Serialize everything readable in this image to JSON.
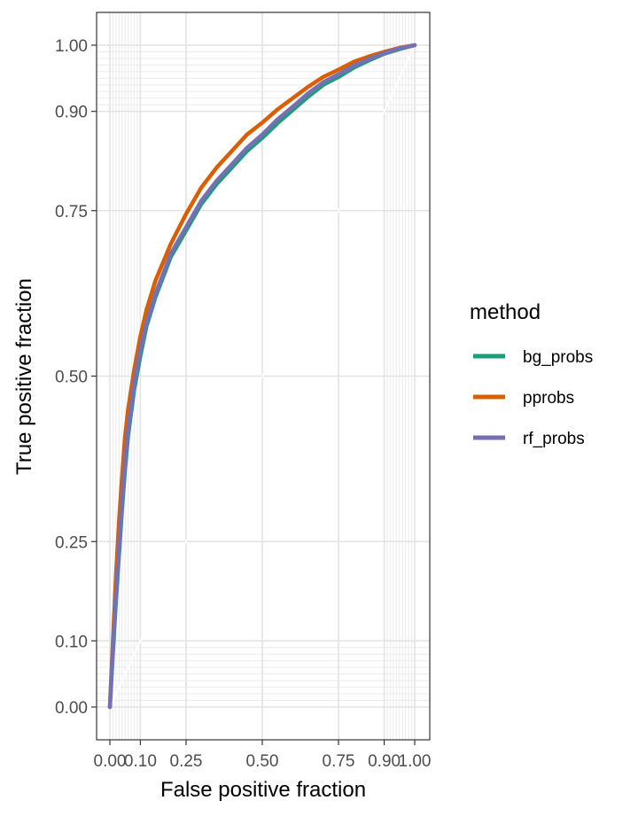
{
  "chart_data": {
    "type": "line",
    "xlabel": "False positive fraction",
    "ylabel": "True positive fraction",
    "xlim": [
      0,
      1
    ],
    "ylim": [
      0,
      1
    ],
    "x_major_ticks": [
      0,
      0.1,
      0.25,
      0.5,
      0.75,
      0.9,
      1
    ],
    "x_tick_labels": [
      "0.00",
      "0.10",
      "0.25",
      "0.50",
      "0.75",
      "0.90",
      "1.00"
    ],
    "y_major_ticks": [
      0,
      0.1,
      0.25,
      0.5,
      0.75,
      0.9,
      1
    ],
    "y_tick_labels": [
      "0.00",
      "0.10",
      "0.25",
      "0.50",
      "0.75",
      "0.90",
      "1.00"
    ],
    "x_minor_ticks": [
      0.01,
      0.02,
      0.03,
      0.04,
      0.05,
      0.06,
      0.07,
      0.08,
      0.09,
      0.91,
      0.92,
      0.93,
      0.94,
      0.95,
      0.96,
      0.97,
      0.98,
      0.99
    ],
    "y_minor_ticks": [
      0.01,
      0.02,
      0.03,
      0.04,
      0.05,
      0.06,
      0.07,
      0.08,
      0.09,
      0.91,
      0.92,
      0.93,
      0.94,
      0.95,
      0.96,
      0.97,
      0.98,
      0.99
    ],
    "grid": true,
    "reference_diagonal": true,
    "legend": {
      "title": "method",
      "position": "right"
    },
    "series": [
      {
        "name": "bg_probs",
        "color": "#1B9E77",
        "x": [
          0,
          0.01,
          0.02,
          0.03,
          0.04,
          0.05,
          0.06,
          0.08,
          0.1,
          0.12,
          0.15,
          0.2,
          0.25,
          0.3,
          0.35,
          0.4,
          0.45,
          0.5,
          0.55,
          0.6,
          0.65,
          0.7,
          0.75,
          0.8,
          0.85,
          0.9,
          0.95,
          1
        ],
        "y": [
          0,
          0.08,
          0.16,
          0.23,
          0.3,
          0.36,
          0.41,
          0.48,
          0.53,
          0.575,
          0.62,
          0.68,
          0.72,
          0.76,
          0.79,
          0.815,
          0.84,
          0.86,
          0.882,
          0.902,
          0.922,
          0.94,
          0.952,
          0.966,
          0.977,
          0.987,
          0.994,
          1
        ]
      },
      {
        "name": "pprobs",
        "color": "#D95F02",
        "x": [
          0,
          0.01,
          0.02,
          0.03,
          0.04,
          0.05,
          0.06,
          0.08,
          0.1,
          0.12,
          0.15,
          0.2,
          0.25,
          0.3,
          0.35,
          0.4,
          0.45,
          0.5,
          0.55,
          0.6,
          0.65,
          0.7,
          0.75,
          0.8,
          0.85,
          0.9,
          0.95,
          1
        ],
        "y": [
          0,
          0.1,
          0.2,
          0.28,
          0.35,
          0.41,
          0.45,
          0.51,
          0.56,
          0.6,
          0.645,
          0.7,
          0.745,
          0.785,
          0.815,
          0.84,
          0.865,
          0.883,
          0.903,
          0.92,
          0.937,
          0.952,
          0.963,
          0.975,
          0.983,
          0.99,
          0.996,
          1
        ]
      },
      {
        "name": "rf_probs",
        "color": "#7570B3",
        "x": [
          0,
          0.01,
          0.02,
          0.03,
          0.04,
          0.05,
          0.06,
          0.08,
          0.1,
          0.12,
          0.15,
          0.2,
          0.25,
          0.3,
          0.35,
          0.4,
          0.45,
          0.5,
          0.55,
          0.6,
          0.65,
          0.7,
          0.75,
          0.8,
          0.85,
          0.9,
          0.95,
          1
        ],
        "y": [
          0,
          0.09,
          0.17,
          0.24,
          0.31,
          0.37,
          0.42,
          0.49,
          0.54,
          0.58,
          0.625,
          0.685,
          0.725,
          0.765,
          0.795,
          0.82,
          0.845,
          0.865,
          0.888,
          0.907,
          0.927,
          0.944,
          0.956,
          0.969,
          0.979,
          0.988,
          0.995,
          1
        ]
      }
    ]
  }
}
